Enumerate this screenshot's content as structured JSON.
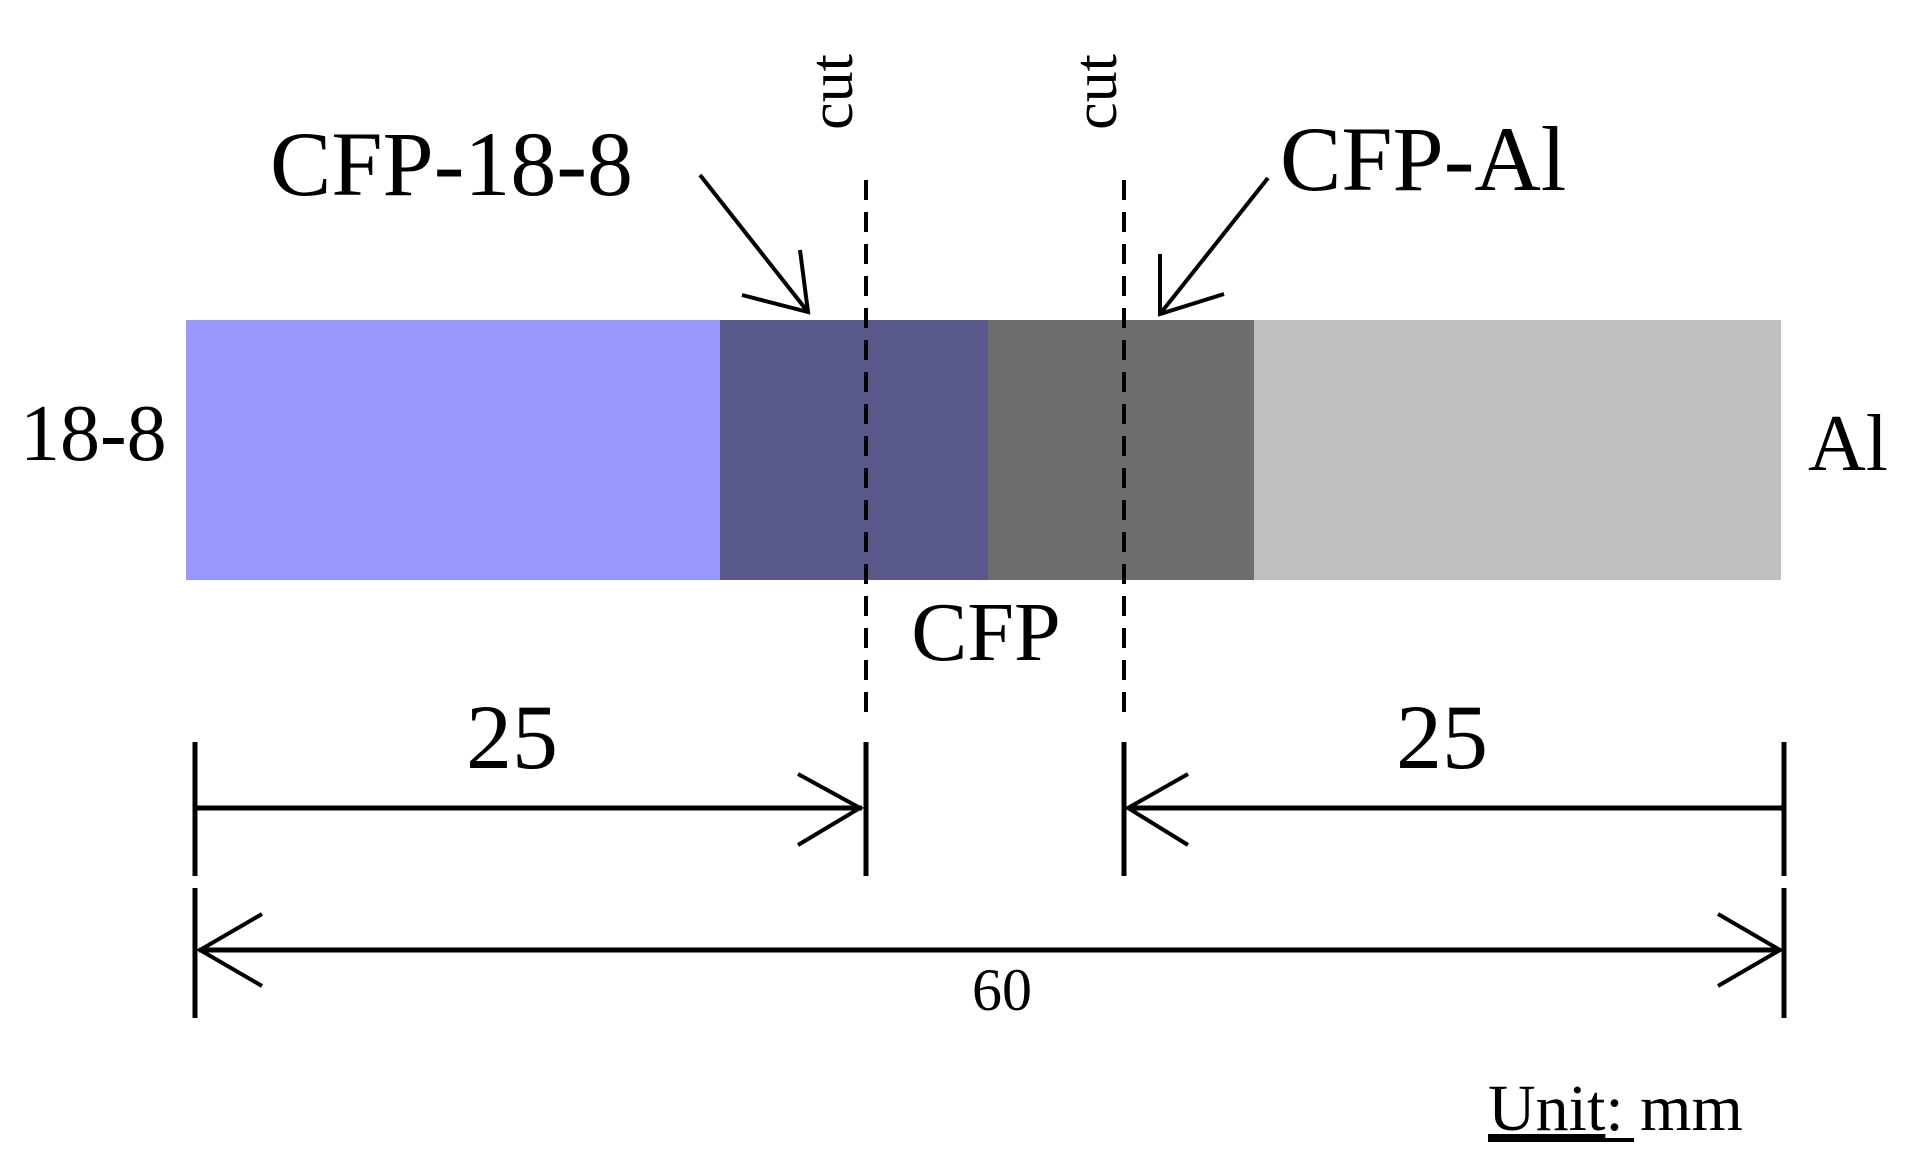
{
  "labels": {
    "left_material": "18-8",
    "right_material": "Al",
    "joint_left": "CFP-18-8",
    "joint_right": "CFP-Al",
    "center": "CFP",
    "cut_left": "cut",
    "cut_right": "cut",
    "dim_left": "25",
    "dim_right": "25",
    "dim_total": "60",
    "unit_word": "Unit",
    "unit_rest": ": mm"
  },
  "colors": {
    "steel": "#9999fd",
    "cfp_steel": "#58588c",
    "cfp_al": "#6e6e6e",
    "aluminum": "#bfbfbf",
    "lines": "#000000"
  }
}
